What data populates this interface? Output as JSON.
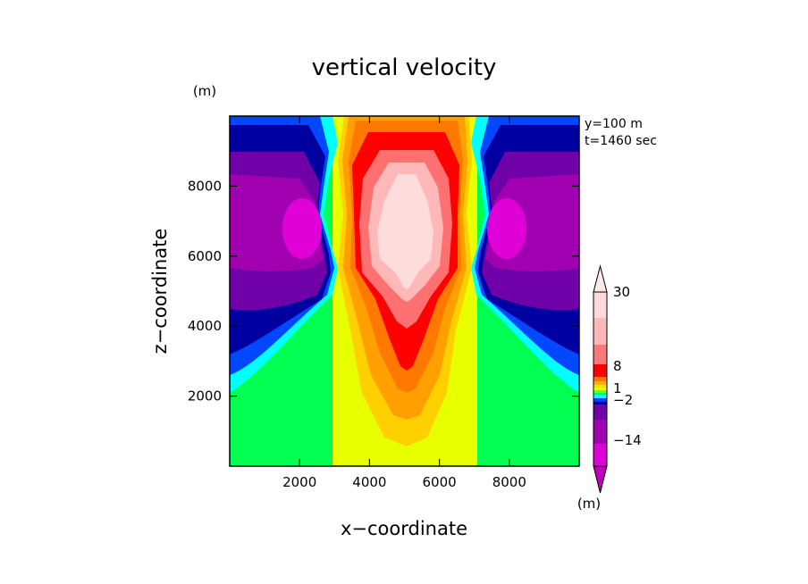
{
  "chart_data": {
    "type": "heatmap",
    "title": "vertical velocity",
    "xlabel": "x−coordinate",
    "ylabel": "z−coordinate",
    "x_unit": "(m)",
    "y_unit": "(m)",
    "annotation_lines": [
      "y=100 m",
      "t=1460 sec"
    ],
    "xlim": [
      0,
      10000
    ],
    "ylim": [
      0,
      10000
    ],
    "x_ticks": [
      2000,
      4000,
      6000,
      8000
    ],
    "y_ticks": [
      2000,
      4000,
      6000,
      8000
    ],
    "x_tick_labels": [
      "2000",
      "4000",
      "6000",
      "8000"
    ],
    "y_tick_labels": [
      "2000",
      "4000",
      "6000",
      "8000"
    ],
    "colorbar": {
      "unit": "(m)",
      "labels": [
        {
          "value": 30,
          "text": "30"
        },
        {
          "value": 8,
          "text": "8"
        },
        {
          "value": 1,
          "text": "1"
        },
        {
          "value": -2,
          "text": "−2"
        },
        {
          "value": -14,
          "text": "−14"
        }
      ],
      "colors": [
        "#c000b8",
        "#e000d8",
        "#a000b0",
        "#7000a8",
        "#0000a0",
        "#0040ff",
        "#00ffff",
        "#00ff50",
        "#70ff00",
        "#e8ff00",
        "#ffe000",
        "#ffb000",
        "#ff7800",
        "#ff0000",
        "#ff7878",
        "#ffb8b8",
        "#ffd8d8",
        "#ffe8e8"
      ]
    },
    "field_colors": {
      "core_center": "#ffdcdc",
      "core_light": "#ffb8b8",
      "core_mid": "#ff7070",
      "core_red": "#ff0000",
      "orange": "#ff7800",
      "orange_light": "#ffa000",
      "yellow_orange": "#ffd000",
      "yellow": "#e8ff00",
      "green": "#00ff50",
      "cyan": "#00ffff",
      "blue": "#0048ff",
      "navy": "#0000a0",
      "purple": "#7000a8",
      "magenta_dark": "#a000b0",
      "magenta": "#e000d8"
    }
  }
}
